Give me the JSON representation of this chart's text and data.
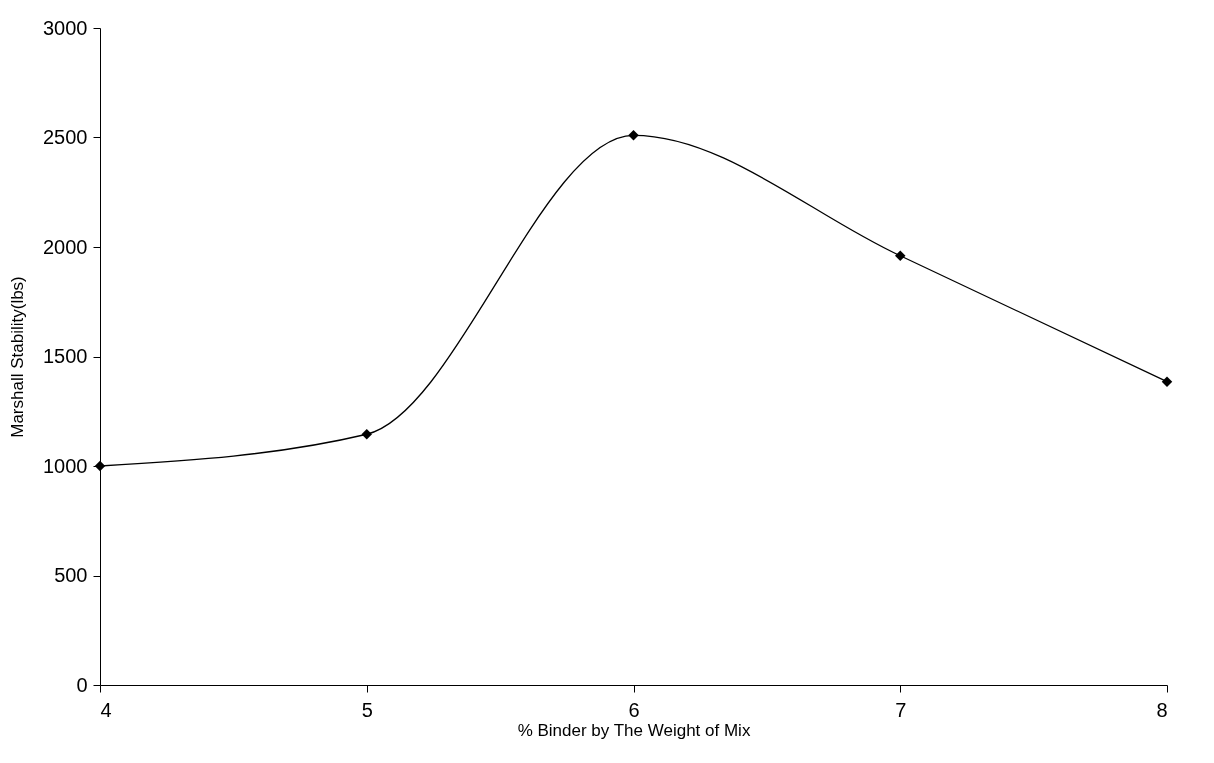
{
  "chart_data": {
    "type": "line",
    "xlabel": "% Binder by The Weight of Mix",
    "ylabel": "Marshall Stability(lbs)",
    "x": [
      4,
      5,
      6,
      7,
      8
    ],
    "series": [
      {
        "color": "#000000",
        "values": [
          1000,
          1145,
          2510,
          1960,
          1385
        ]
      }
    ],
    "xlim": [
      4,
      8
    ],
    "xticks": [
      4,
      5,
      6,
      7,
      8
    ],
    "ylim": [
      0,
      3000
    ],
    "yticks": [
      0,
      500,
      1000,
      1500,
      2000,
      2500,
      3000
    ],
    "grid": false,
    "legend": false,
    "marker": "diamond",
    "line_style": "solid"
  }
}
